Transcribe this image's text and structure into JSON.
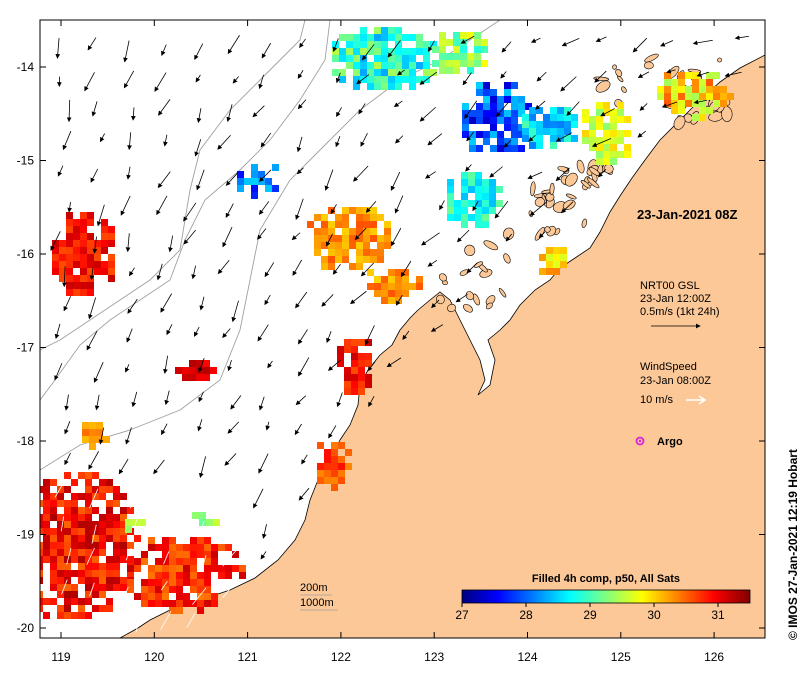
{
  "map": {
    "title_timestamp": "23-Jan-2021 08Z",
    "credit": "© IMOS 27-Jan-2021 12:19 Hobart",
    "x_ticks": [
      "119",
      "120",
      "121",
      "122",
      "123",
      "124",
      "125",
      "126"
    ],
    "y_ticks": [
      "-14",
      "-15",
      "-16",
      "-17",
      "-18",
      "-19",
      "-20"
    ],
    "lon_range": [
      118.6,
      126.7
    ],
    "lat_range": [
      -13.5,
      -20.1
    ],
    "colors": {
      "land": "#fcc898",
      "coastline": "#000000",
      "bathymetry": "#a0a0a0",
      "argo_marker": "#dd22dd"
    }
  },
  "legend": {
    "current": {
      "line1": "NRT00 GSL",
      "line2": "23-Jan 12:00Z",
      "line3": "0.5m/s (1kt 24h)"
    },
    "wind": {
      "line1": "WindSpeed",
      "line2": "23-Jan 08:00Z",
      "line3": "10 m/s"
    },
    "argo_label": "Argo",
    "bathymetry": {
      "line1": "200m",
      "line2": "1000m"
    }
  },
  "colorbar": {
    "title": "Filled 4h comp, p50, All Sats",
    "min": 27,
    "max": 31.5,
    "ticks": [
      "27",
      "28",
      "29",
      "30",
      "31"
    ],
    "colormap": [
      "#00007f",
      "#0000ff",
      "#007fff",
      "#00ffff",
      "#7fff7f",
      "#ffff00",
      "#ff7f00",
      "#ff0000",
      "#7f0000"
    ]
  }
}
